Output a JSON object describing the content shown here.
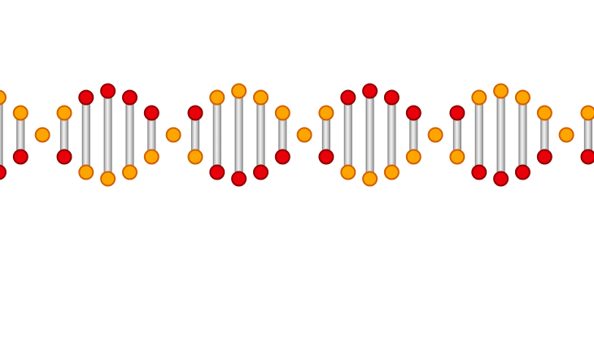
{
  "illustration": {
    "subject": "dna-double-helix",
    "colors": {
      "background": "#ffffff",
      "red_node_fill": "#e8000a",
      "red_node_stroke": "#8f0000",
      "orange_node_fill": "#ffa500",
      "orange_node_stroke": "#d06000",
      "rung_fill": "#d9d9d9",
      "rung_highlight": "#f4f4f4",
      "rung_stroke": "#8a8a8a"
    }
  }
}
